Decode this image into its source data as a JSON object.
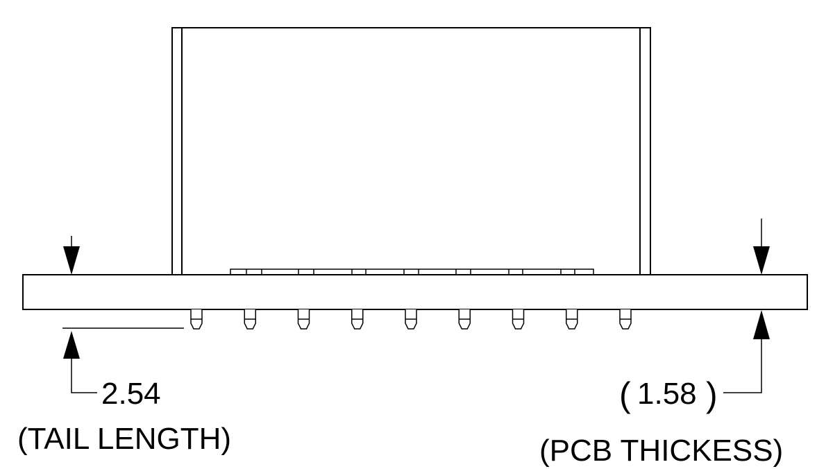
{
  "dimensions": {
    "tail_length": {
      "value": "2.54",
      "caption": "(TAIL LENGTH)"
    },
    "pcb_thickness": {
      "open_paren": "(",
      "value": "1.58",
      "close_paren": ")",
      "caption": "(PCB THICKESS)"
    }
  },
  "pin_count": 9,
  "colors": {
    "line": "#000000",
    "background": "#ffffff"
  }
}
